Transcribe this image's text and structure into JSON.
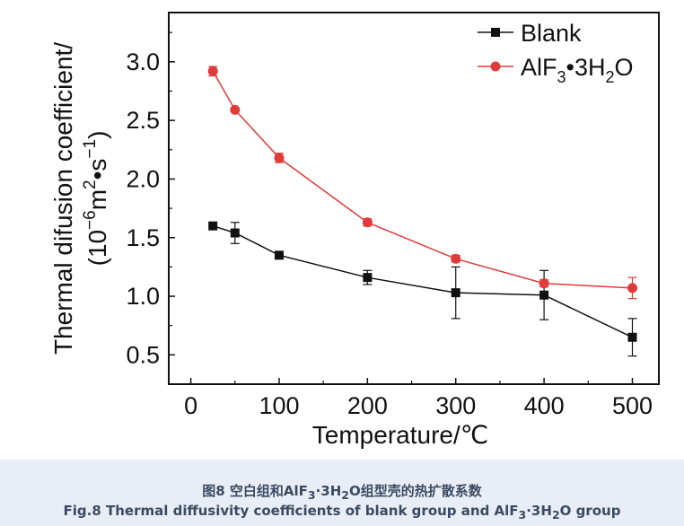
{
  "chart_data": {
    "type": "line",
    "xlabel": "Temperature/℃",
    "ylabel_line1": "Thermal difusion coefficient/",
    "ylabel_line2": {
      "open": "(10",
      "exp1": "−6",
      "mid": "m",
      "exp2": "2",
      "dot": "•s",
      "exp3": "−1",
      "close": ")"
    },
    "xlim": [
      -25,
      530
    ],
    "ylim": [
      0.25,
      3.42
    ],
    "xticks": [
      0,
      100,
      200,
      300,
      400,
      500
    ],
    "yticks": [
      0.5,
      1.0,
      1.5,
      2.0,
      2.5,
      3.0
    ],
    "xtick_labels": [
      "0",
      "100",
      "200",
      "300",
      "400",
      "500"
    ],
    "ytick_labels": [
      "0.5",
      "1.0",
      "1.5",
      "2.0",
      "2.5",
      "3.0"
    ],
    "legend_position": "top-right",
    "grid": false,
    "series": [
      {
        "name": "Blank",
        "color": "#111111",
        "marker": "square",
        "x": [
          25,
          50,
          100,
          200,
          300,
          400,
          500
        ],
        "y": [
          1.6,
          1.54,
          1.35,
          1.16,
          1.03,
          1.01,
          0.65
        ],
        "error": [
          0.0,
          0.09,
          0.03,
          0.06,
          0.22,
          0.21,
          0.16
        ]
      },
      {
        "name": "AlF3•3H2O",
        "color": "#e03a3a",
        "marker": "circle",
        "x": [
          25,
          50,
          100,
          200,
          300,
          400,
          500
        ],
        "y": [
          2.92,
          2.59,
          2.18,
          1.63,
          1.32,
          1.11,
          1.07
        ],
        "error": [
          0.04,
          0.0,
          0.04,
          0.03,
          0.03,
          0.03,
          0.09
        ]
      }
    ],
    "legend_labels": {
      "blank": "Blank",
      "alf": {
        "a": "AlF",
        "s1": "3",
        "b": "•3H",
        "s2": "2",
        "c": "O"
      }
    }
  },
  "caption": {
    "cn": {
      "a": "图8 空白组和AlF",
      "s1": "3",
      "b": "·3H",
      "s2": "2",
      "c": "O组型壳的热扩散系数"
    },
    "en": {
      "a": "Fig.8 Thermal diffusivity coefficients of blank group and AlF",
      "s1": "3",
      "b": "·3H",
      "s2": "2",
      "c": "O group"
    }
  }
}
